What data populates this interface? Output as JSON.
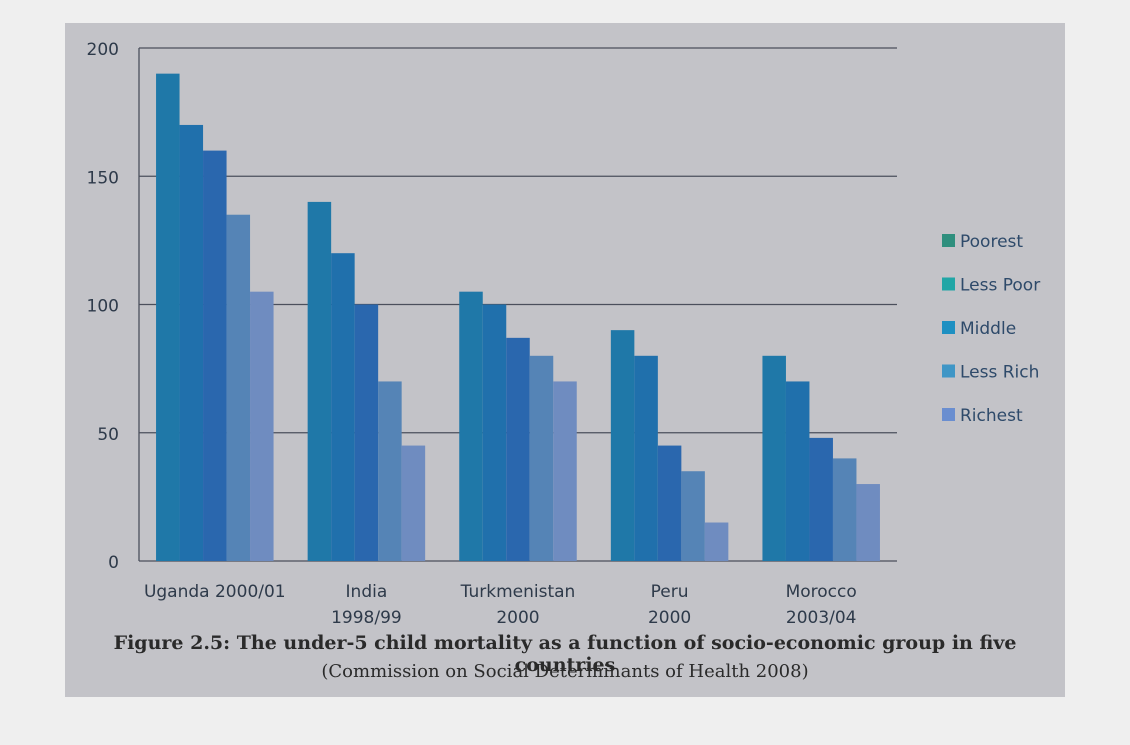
{
  "chart_data": {
    "type": "bar",
    "categories": [
      [
        "Uganda 2000/01"
      ],
      [
        "India",
        "1998/99"
      ],
      [
        "Turkmenistan",
        "2000"
      ],
      [
        "Peru",
        "2000"
      ],
      [
        "Morocco",
        "2003/04"
      ]
    ],
    "series": [
      {
        "name": "Poorest",
        "values": [
          190,
          140,
          105,
          90,
          80
        ]
      },
      {
        "name": "Less Poor",
        "values": [
          170,
          120,
          100,
          80,
          70
        ]
      },
      {
        "name": "Middle",
        "values": [
          160,
          100,
          87,
          45,
          48
        ]
      },
      {
        "name": "Less Rich",
        "values": [
          135,
          70,
          80,
          35,
          40
        ]
      },
      {
        "name": "Richest",
        "values": [
          105,
          45,
          70,
          15,
          30
        ]
      }
    ],
    "colors": [
      "#1f78a8",
      "#2070ac",
      "#2a67ae",
      "#5584b6",
      "#6f8cc0"
    ],
    "legend_colors": [
      "#2f8f7e",
      "#21a6a6",
      "#1e90c2",
      "#3f96c6",
      "#6a8ed0"
    ],
    "ylim": [
      0,
      200
    ],
    "yticks": [
      0,
      50,
      100,
      150,
      200
    ],
    "legend_position": "right",
    "grid": true
  },
  "caption": {
    "title": "Figure 2.5: The under-5 child mortality as a function of socio-economic group in five countries",
    "source": "(Commission on Social Determinants of Health 2008)"
  }
}
